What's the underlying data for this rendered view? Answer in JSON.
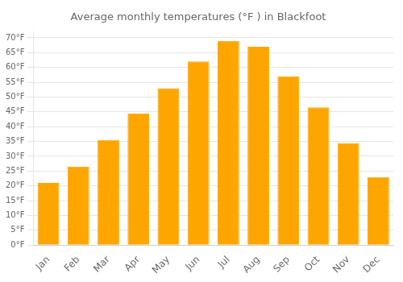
{
  "chart_data": {
    "type": "bar",
    "title": "Average monthly temperatures (°F ) in Blackfoot",
    "categories": [
      "Jan",
      "Feb",
      "Mar",
      "Apr",
      "May",
      "Jun",
      "Jul",
      "Aug",
      "Sep",
      "Oct",
      "Nov",
      "Dec"
    ],
    "values": [
      21,
      26.5,
      35.5,
      44.5,
      53,
      62,
      69,
      67,
      57,
      46.5,
      34.5,
      23
    ],
    "color": "#FFA500",
    "ylim": [
      0,
      72
    ],
    "yticks": [
      {
        "value": 0,
        "label": "0°F"
      },
      {
        "value": 5,
        "label": "5°F"
      },
      {
        "value": 10,
        "label": "10°F"
      },
      {
        "value": 15,
        "label": "15°F"
      },
      {
        "value": 20,
        "label": "20°F"
      },
      {
        "value": 25,
        "label": "25°F"
      },
      {
        "value": 30,
        "label": "30°F"
      },
      {
        "value": 35,
        "label": "35°F"
      },
      {
        "value": 40,
        "label": "40°F"
      },
      {
        "value": 45,
        "label": "45°F"
      },
      {
        "value": 50,
        "label": "50°F"
      },
      {
        "value": 55,
        "label": "55°F"
      },
      {
        "value": 60,
        "label": "60°F"
      },
      {
        "value": 65,
        "label": "65°F"
      },
      {
        "value": 70,
        "label": "70°F"
      }
    ],
    "grid": true
  }
}
